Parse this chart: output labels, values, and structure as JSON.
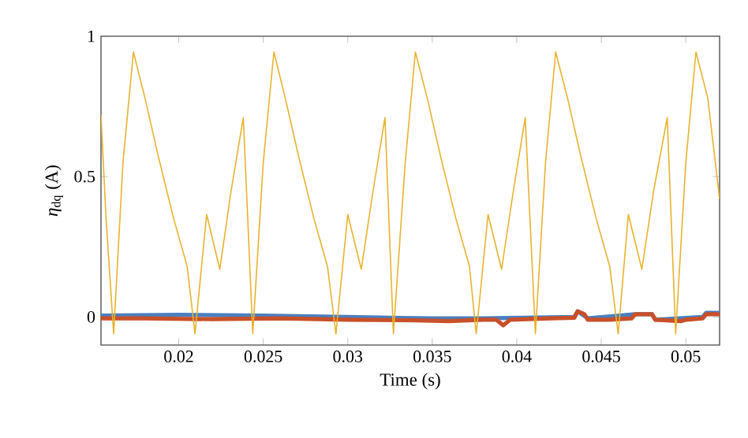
{
  "chart_data": {
    "type": "line",
    "xlabel": "Time (s)",
    "ylabel": "*η*$_{dq}$ (A)",
    "xlim": [
      0.0154,
      0.052
    ],
    "ylim": [
      -0.1,
      1
    ],
    "xticks": [
      0.02,
      0.025,
      0.03,
      0.035,
      0.04,
      0.045,
      0.05
    ],
    "yticks": [
      0,
      0.5,
      1
    ],
    "series": [
      {
        "color": "#4a7fbf",
        "x": [
          0.0154,
          0.02,
          0.025,
          0.03,
          0.035,
          0.038,
          0.0434,
          0.0436,
          0.0442,
          0.047,
          0.048,
          0.0482,
          0.051,
          0.0512,
          0.052
        ],
        "values": [
          0.005,
          0.008,
          0.005,
          0.0,
          -0.005,
          -0.005,
          0.0,
          0.02,
          -0.005,
          0.01,
          0.01,
          -0.01,
          0.0,
          0.015,
          0.015
        ]
      },
      {
        "color": "#c8502a",
        "x": [
          0.0154,
          0.018,
          0.022,
          0.026,
          0.03,
          0.034,
          0.036,
          0.038,
          0.0388,
          0.0392,
          0.0396,
          0.042,
          0.0434,
          0.0436,
          0.044,
          0.0442,
          0.0455,
          0.0468,
          0.047,
          0.048,
          0.0482,
          0.0497,
          0.05,
          0.051,
          0.0512,
          0.052
        ],
        "values": [
          -0.005,
          -0.005,
          -0.008,
          -0.005,
          -0.01,
          -0.012,
          -0.015,
          -0.01,
          -0.01,
          -0.03,
          -0.01,
          -0.005,
          -0.003,
          0.02,
          0.01,
          -0.01,
          -0.01,
          -0.005,
          0.01,
          0.01,
          -0.01,
          -0.015,
          -0.01,
          -0.005,
          0.01,
          0.01
        ]
      },
      {
        "color": "#e8b22e",
        "x": [
          0.0154,
          0.0157,
          0.01615,
          0.0167,
          0.01732,
          0.018,
          0.0188,
          0.0197,
          0.0205,
          0.02096,
          0.02165,
          0.02243,
          0.0231,
          0.02382,
          0.02438,
          0.025,
          0.02563,
          0.0263,
          0.0271,
          0.028,
          0.0288,
          0.0293,
          0.03,
          0.0308,
          0.0315,
          0.0322,
          0.0327,
          0.0334,
          0.034,
          0.0347,
          0.0355,
          0.0364,
          0.0372,
          0.0376,
          0.0383,
          0.0391,
          0.0398,
          0.0405,
          0.0411,
          0.0417,
          0.0423,
          0.043,
          0.0438,
          0.0447,
          0.0455,
          0.046,
          0.0466,
          0.0474,
          0.0481,
          0.0489,
          0.0494,
          0.05,
          0.0506,
          0.0513,
          0.052
        ],
        "values": [
          0.72,
          0.35,
          -0.06,
          0.55,
          0.944,
          0.78,
          0.57,
          0.35,
          0.18,
          -0.06,
          0.365,
          0.17,
          0.45,
          0.71,
          -0.06,
          0.55,
          0.944,
          0.78,
          0.57,
          0.35,
          0.18,
          -0.06,
          0.365,
          0.17,
          0.45,
          0.71,
          -0.06,
          0.55,
          0.944,
          0.78,
          0.57,
          0.35,
          0.18,
          -0.06,
          0.365,
          0.17,
          0.45,
          0.71,
          -0.06,
          0.55,
          0.944,
          0.78,
          0.57,
          0.35,
          0.18,
          -0.06,
          0.365,
          0.17,
          0.45,
          0.71,
          -0.06,
          0.55,
          0.944,
          0.78,
          0.42
        ]
      }
    ]
  }
}
